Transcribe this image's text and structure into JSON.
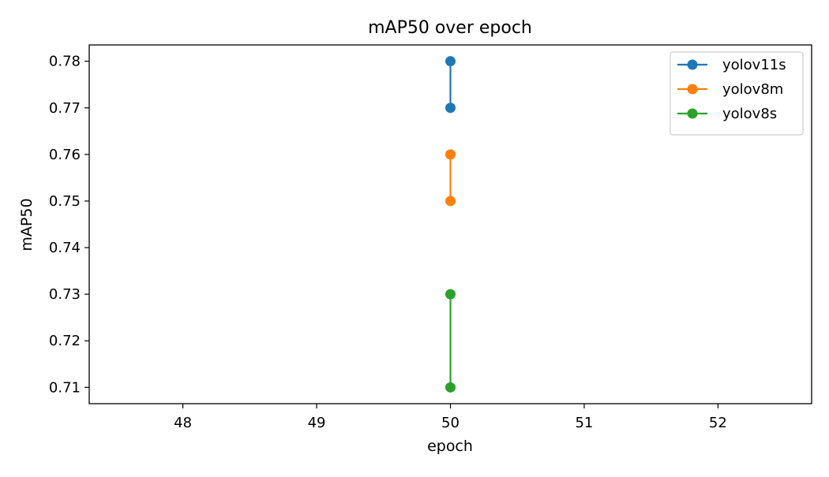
{
  "chart_data": {
    "type": "line",
    "title": "mAP50 over epoch",
    "xlabel": "epoch",
    "ylabel": "mAP50",
    "xlim": [
      47.3,
      52.7
    ],
    "ylim": [
      0.7065,
      0.7835
    ],
    "xticks": [
      48,
      49,
      50,
      51,
      52
    ],
    "xtick_labels": [
      "48",
      "49",
      "50",
      "51",
      "52"
    ],
    "yticks": [
      0.71,
      0.72,
      0.73,
      0.74,
      0.75,
      0.76,
      0.77,
      0.78
    ],
    "ytick_labels": [
      "0.71",
      "0.72",
      "0.73",
      "0.74",
      "0.75",
      "0.76",
      "0.77",
      "0.78"
    ],
    "grid": false,
    "legend_position": "top-right",
    "series": [
      {
        "name": "yolov11s",
        "color": "#1f77b4",
        "points": [
          {
            "x": 50,
            "y": 0.78
          },
          {
            "x": 50,
            "y": 0.77
          }
        ]
      },
      {
        "name": "yolov8m",
        "color": "#ff7f0e",
        "points": [
          {
            "x": 50,
            "y": 0.76
          },
          {
            "x": 50,
            "y": 0.75
          }
        ]
      },
      {
        "name": "yolov8s",
        "color": "#2ca02c",
        "points": [
          {
            "x": 50,
            "y": 0.73
          },
          {
            "x": 50,
            "y": 0.71
          }
        ]
      }
    ]
  }
}
